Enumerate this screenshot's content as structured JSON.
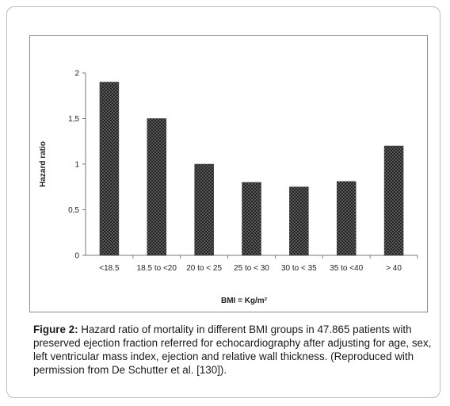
{
  "chart_data": {
    "type": "bar",
    "categories": [
      "<18.5",
      "18.5 to <20",
      "20 to < 25",
      "25 to < 30",
      "30 to < 35",
      "35 to <40",
      "> 40"
    ],
    "values": [
      1.9,
      1.5,
      1.0,
      0.8,
      0.75,
      0.81,
      1.2
    ],
    "xlabel": "BMI = Kg/m²",
    "ylabel": "Hazard ratio",
    "ylim": [
      0,
      2
    ],
    "yticks": [
      "0",
      "0,5",
      "1",
      "1,5",
      "2"
    ],
    "grid": false,
    "legend": "none",
    "bar_color": "#555555"
  },
  "caption": {
    "label": "Figure 2:",
    "text": " Hazard ratio of mortality in different BMI groups in 47.865 patients with preserved ejection fraction referred for echocardiography after adjusting for age, sex, left ventricular mass index, ejection and relative wall thickness. (Reproduced with permission from De Schutter et al. [130])."
  }
}
